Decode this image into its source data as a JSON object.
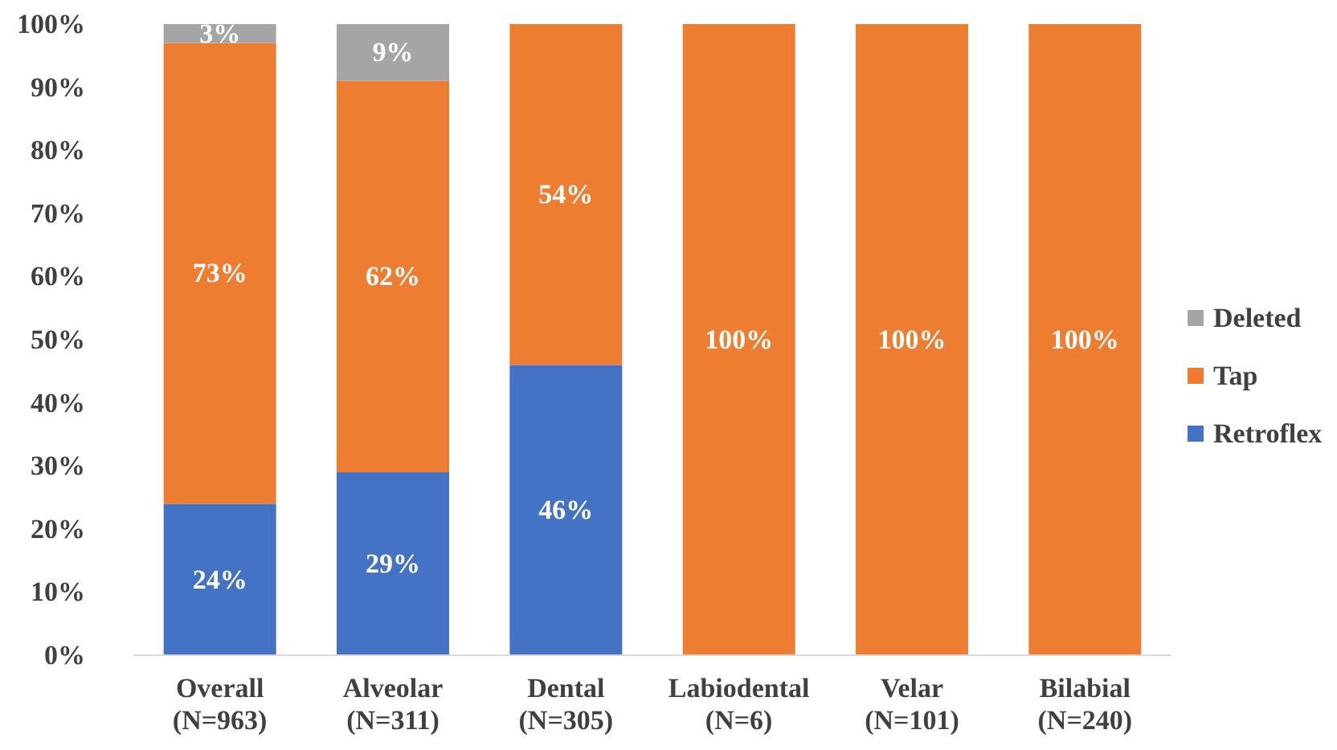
{
  "chart_data": {
    "type": "bar",
    "stacked": true,
    "categories": [
      "Overall\n(N=963)",
      "Alveolar\n(N=311)",
      "Dental\n(N=305)",
      "Labiodental\n(N=6)",
      "Velar\n(N=101)",
      "Bilabial\n(N=240)"
    ],
    "series": [
      {
        "name": "Retroflex",
        "color": "#4472c4",
        "values": [
          24,
          29,
          46,
          null,
          null,
          null
        ],
        "value_labels": [
          "24%",
          "29%",
          "46%",
          null,
          null,
          null
        ]
      },
      {
        "name": "Tap",
        "color": "#ed7d31",
        "values": [
          73,
          62,
          54,
          100,
          100,
          100
        ],
        "value_labels": [
          "73%",
          "62%",
          "54%",
          "100%",
          "100%",
          "100%"
        ]
      },
      {
        "name": "Deleted",
        "color": "#a5a5a5",
        "values": [
          3,
          9,
          null,
          null,
          null,
          null
        ],
        "value_labels": [
          "3%",
          "9%",
          null,
          null,
          null,
          null
        ]
      }
    ],
    "ylim": [
      0,
      100
    ],
    "yticks": [
      {
        "value": 0,
        "label": "0%"
      },
      {
        "value": 10,
        "label": "10%"
      },
      {
        "value": 20,
        "label": "20%"
      },
      {
        "value": 30,
        "label": "30%"
      },
      {
        "value": 40,
        "label": "40%"
      },
      {
        "value": 50,
        "label": "50%"
      },
      {
        "value": 60,
        "label": "60%"
      },
      {
        "value": 70,
        "label": "70%"
      },
      {
        "value": 80,
        "label": "80%"
      },
      {
        "value": 90,
        "label": "90%"
      },
      {
        "value": 100,
        "label": "100%"
      }
    ],
    "legend": "right",
    "grid": false
  }
}
